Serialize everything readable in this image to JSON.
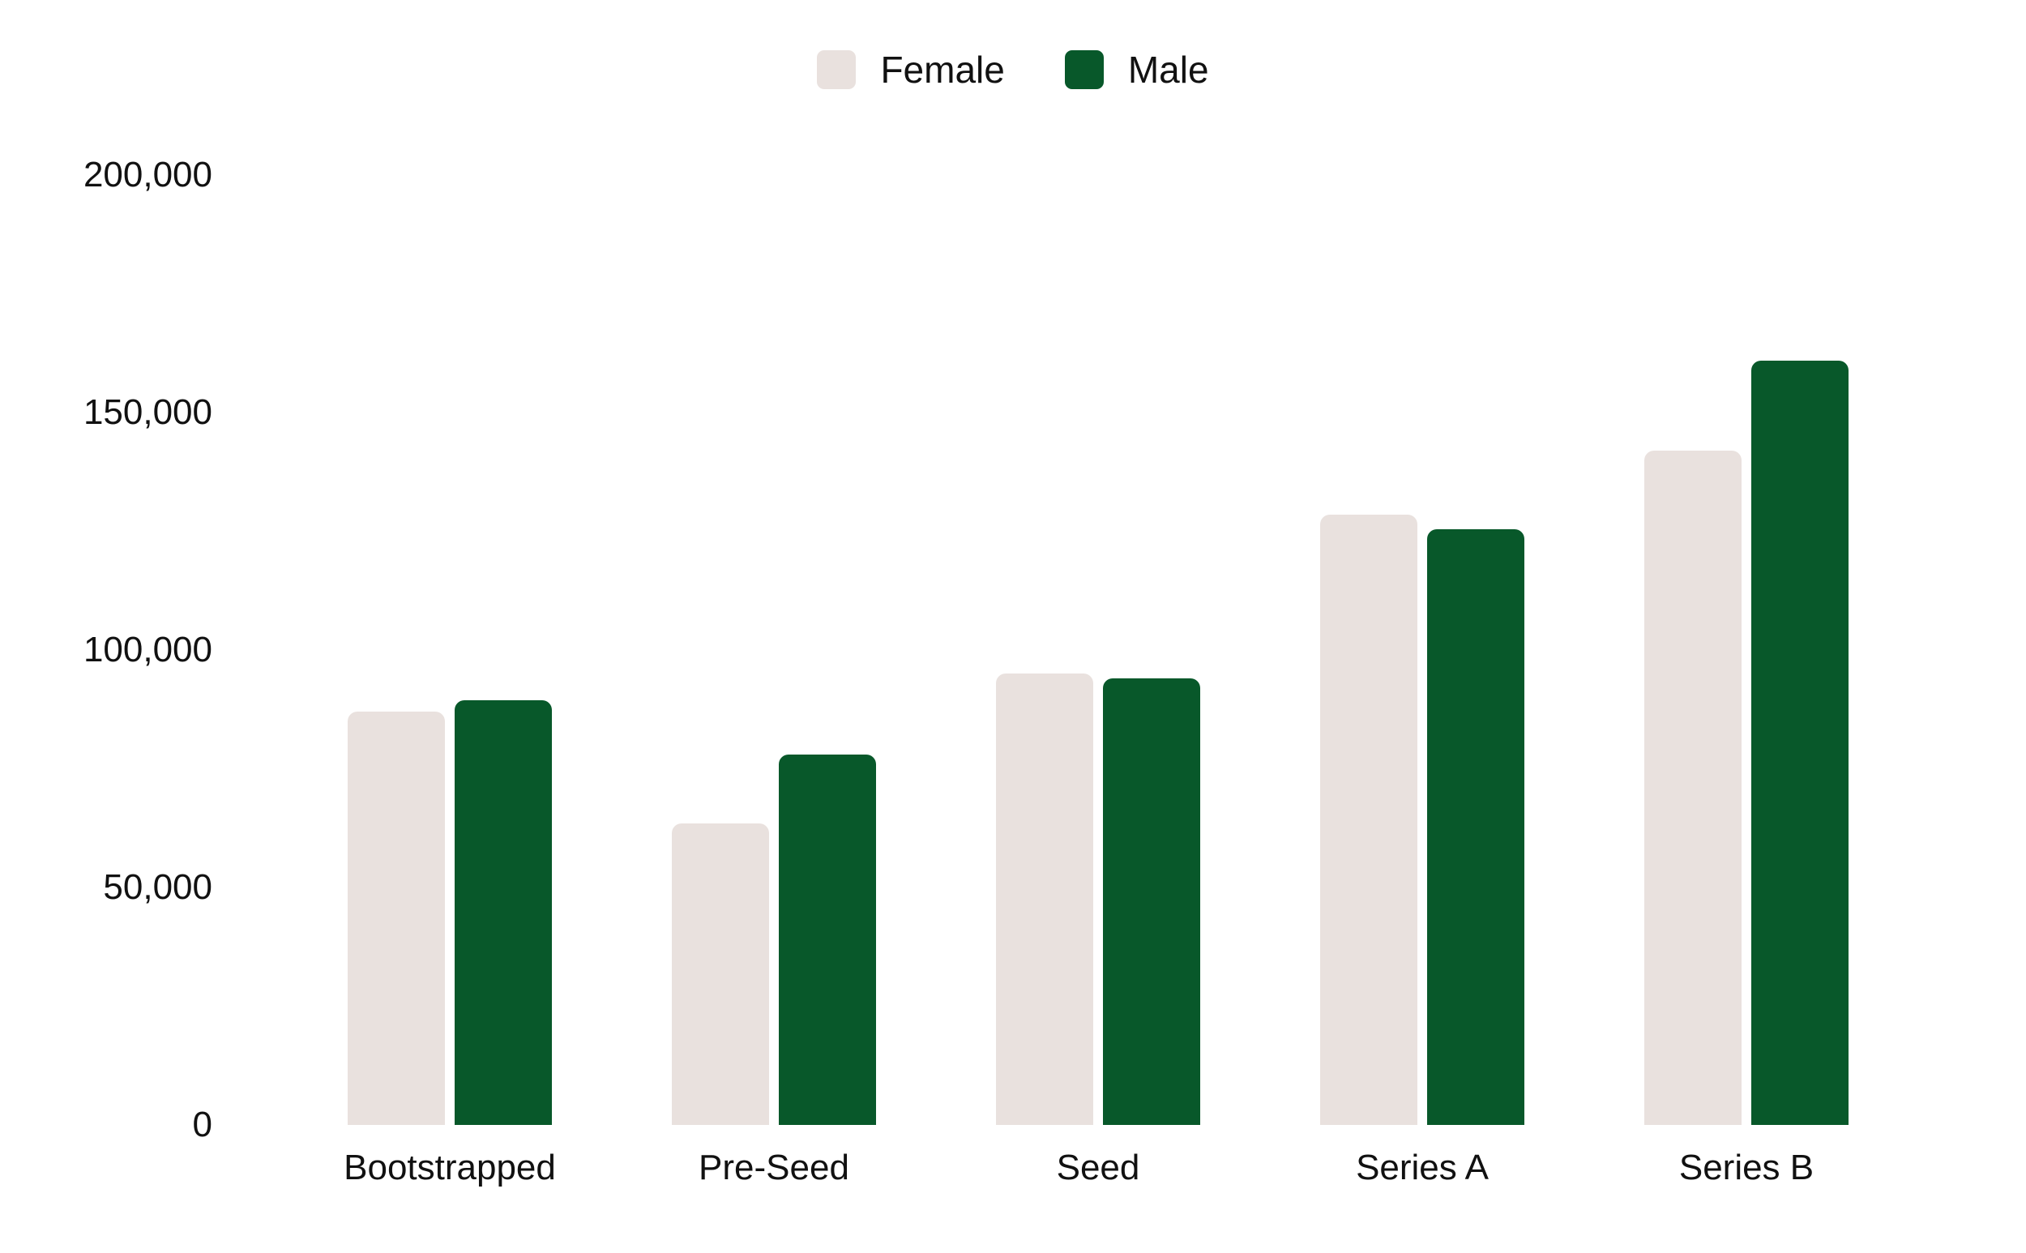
{
  "chart_data": {
    "type": "bar",
    "categories": [
      "Bootstrapped",
      "Pre-Seed",
      "Seed",
      "Series A",
      "Series B"
    ],
    "series": [
      {
        "name": "Female",
        "color": "#e9e1de",
        "values": [
          87000,
          63500,
          95000,
          128500,
          142000
        ]
      },
      {
        "name": "Male",
        "color": "#08582a",
        "values": [
          89500,
          78000,
          94000,
          125500,
          161000
        ]
      }
    ],
    "title": "",
    "xlabel": "",
    "ylabel": "",
    "ylim": [
      0,
      200000
    ],
    "yticks": [
      {
        "value": 200000,
        "label": "200,000"
      },
      {
        "value": 150000,
        "label": "150,000"
      },
      {
        "value": 100000,
        "label": "100,000"
      },
      {
        "value": 50000,
        "label": "50,000"
      },
      {
        "value": 0,
        "label": "0"
      }
    ],
    "grid": false,
    "axis_lines": false,
    "legend_position": "top-center",
    "background": "#ffffff",
    "text_color": "#111111"
  }
}
